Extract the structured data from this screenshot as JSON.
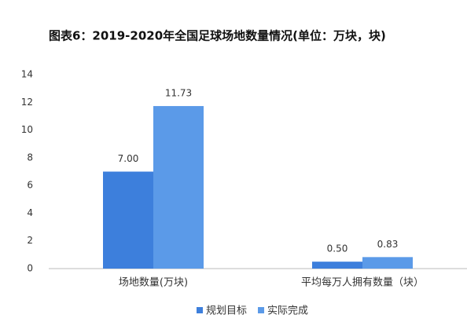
{
  "chart_data": {
    "type": "bar",
    "title": "图表6：2019-2020年全国足球场地数量情况(单位：万块，块)",
    "categories": [
      "场地数量(万块)",
      "平均每万人拥有数量（块）"
    ],
    "series": [
      {
        "name": "规划目标",
        "color": "#3d7fdc",
        "values": [
          7.0,
          0.5
        ],
        "value_labels": [
          "7.00",
          "0.50"
        ]
      },
      {
        "name": "实际完成",
        "color": "#5b9ae8",
        "values": [
          11.73,
          0.83
        ],
        "value_labels": [
          "11.73",
          "0.83"
        ]
      }
    ],
    "ylim": [
      0,
      14
    ],
    "yticks": [
      0,
      2,
      4,
      6,
      8,
      10,
      12,
      14
    ],
    "grid": false,
    "legend": "bottom"
  }
}
